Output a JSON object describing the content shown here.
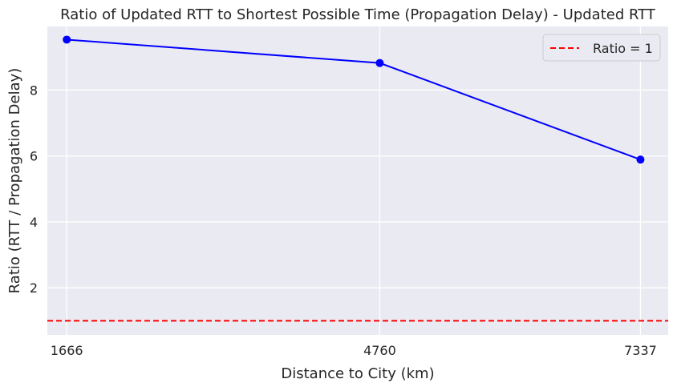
{
  "chart_data": {
    "type": "line",
    "title": "Ratio of Updated RTT to Shortest Possible Time (Propagation Delay) - Updated RTT",
    "xlabel": "Distance to City (km)",
    "ylabel": "Ratio (RTT / Propagation Delay)",
    "x": [
      1666,
      4760,
      7337
    ],
    "x_tick_labels": [
      "1666",
      "4760",
      "7337"
    ],
    "xlim": [
      1474,
      7611
    ],
    "y_ticks": [
      2,
      4,
      6,
      8
    ],
    "y_tick_labels": [
      "2",
      "4",
      "6",
      "8"
    ],
    "ylim": [
      0.57,
      9.93
    ],
    "series": [
      {
        "values": [
          9.53,
          8.82,
          5.89
        ],
        "color": "#0000ff",
        "marker": "circle"
      }
    ],
    "reference_lines": [
      {
        "orientation": "horizontal",
        "y": 1,
        "label": "Ratio = 1",
        "color": "#ff0000",
        "style": "dashed"
      }
    ],
    "legend": {
      "position": "top-right",
      "entries": [
        "Ratio = 1"
      ]
    },
    "grid": true,
    "background": "#eaeaf2",
    "grid_color": "#ffffff"
  }
}
